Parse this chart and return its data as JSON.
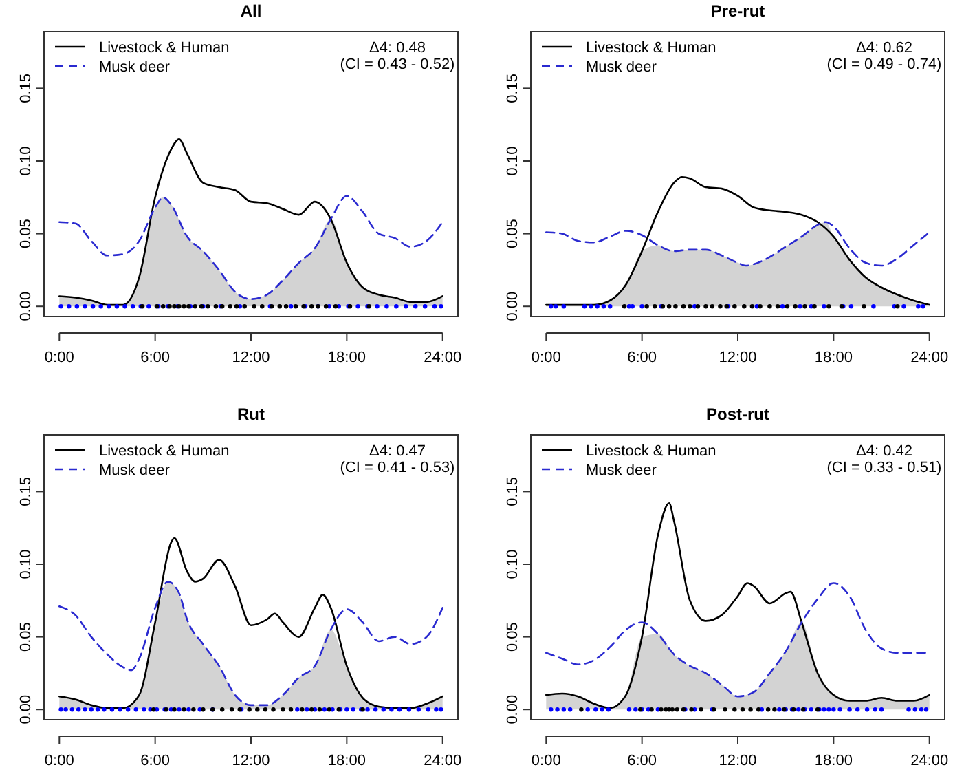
{
  "chart_data": [
    {
      "type": "line",
      "title": "All",
      "xlim": [
        -0.96,
        24.96
      ],
      "ylim": [
        -0.007,
        0.189
      ],
      "xticks": [
        {
          "value": 0,
          "label": "0:00"
        },
        {
          "value": 6,
          "label": "6:00"
        },
        {
          "value": 12,
          "label": "12:00"
        },
        {
          "value": 18,
          "label": "18:00"
        },
        {
          "value": 24,
          "label": "24:00"
        }
      ],
      "yticks": [
        {
          "value": 0,
          "label": "0.00"
        },
        {
          "value": 0.05,
          "label": "0.05"
        },
        {
          "value": 0.1,
          "label": "0.10"
        },
        {
          "value": 0.15,
          "label": "0.15"
        }
      ],
      "legend": "top left",
      "annotations": [
        "Δ4: 0.48",
        "(CI = 0.43 - 0.52)"
      ],
      "series": [
        {
          "type": "area",
          "color": "#d3d3d3",
          "x": [
            0,
            1,
            2,
            3,
            4,
            5,
            6,
            6.5,
            7,
            8,
            9,
            10,
            11,
            12,
            13,
            14,
            15,
            16,
            17,
            18,
            19,
            20,
            21,
            22,
            23,
            24
          ],
          "values": [
            0.007,
            0.006,
            0.004,
            0.001,
            0.001,
            0.02,
            0.068,
            0.075,
            0.07,
            0.048,
            0.038,
            0.025,
            0.01,
            0.005,
            0.008,
            0.018,
            0.03,
            0.04,
            0.06,
            0.03,
            0.013,
            0.008,
            0.006,
            0.003,
            0.003,
            0.007
          ]
        },
        {
          "type": "line",
          "name": "Livestock & Human",
          "color": "#000000",
          "line_style": "solid",
          "x": [
            0,
            1,
            2,
            3,
            4,
            5,
            6,
            7,
            7.5,
            8,
            9,
            10,
            11,
            12,
            13,
            14,
            15,
            16,
            17,
            18,
            19,
            20,
            21,
            22,
            23,
            24
          ],
          "values": [
            0.007,
            0.006,
            0.004,
            0.001,
            0.001,
            0.02,
            0.075,
            0.108,
            0.115,
            0.105,
            0.085,
            0.082,
            0.08,
            0.072,
            0.071,
            0.067,
            0.063,
            0.072,
            0.06,
            0.03,
            0.013,
            0.008,
            0.006,
            0.003,
            0.003,
            0.007
          ]
        },
        {
          "type": "line",
          "name": "Musk deer",
          "color": "#2a2ad0",
          "line_style": "dashed",
          "x": [
            0,
            1,
            2,
            3,
            4,
            5,
            6,
            6.5,
            7,
            8,
            9,
            10,
            11,
            12,
            13,
            14,
            15,
            16,
            17,
            18,
            19,
            20,
            21,
            22,
            23,
            24
          ],
          "values": [
            0.058,
            0.057,
            0.045,
            0.035,
            0.036,
            0.045,
            0.068,
            0.075,
            0.07,
            0.048,
            0.038,
            0.025,
            0.01,
            0.005,
            0.008,
            0.018,
            0.03,
            0.04,
            0.06,
            0.076,
            0.065,
            0.05,
            0.047,
            0.041,
            0.045,
            0.058
          ]
        },
        {
          "type": "scatter",
          "color": "#0000ff",
          "x": [
            0.1,
            0.6,
            1.1,
            1.6,
            2.1,
            2.6,
            3.1,
            3.6,
            4.1,
            4.6,
            5.1,
            5.6,
            6.2,
            6.8,
            7.4,
            8.2,
            9,
            10.1,
            11.3,
            13.2,
            14.5,
            15.4,
            16.2,
            16.9,
            17.5,
            18.1,
            18.7,
            19.3,
            19.9,
            20.5,
            21.1,
            21.7,
            22.3,
            22.9,
            23.5,
            23.9
          ],
          "values": [
            0,
            0,
            0,
            0,
            0,
            0,
            0,
            0,
            0,
            0,
            0,
            0,
            0,
            0,
            0,
            0,
            0,
            0,
            0,
            0,
            0,
            0,
            0,
            0,
            0,
            0,
            0,
            0,
            0,
            0,
            0,
            0,
            0,
            0,
            0,
            0
          ]
        },
        {
          "type": "scatter",
          "color": "#000000",
          "x": [
            5.2,
            6.1,
            6.5,
            6.9,
            7.2,
            7.5,
            7.8,
            8.1,
            8.5,
            8.9,
            9.3,
            9.8,
            10.2,
            10.7,
            11.1,
            11.6,
            12.2,
            12.7,
            13.3,
            13.8,
            14.2,
            14.8,
            15.3,
            15.8,
            16.2,
            16.7,
            17.3,
            18.2,
            19.4
          ],
          "values": [
            0,
            0,
            0,
            0,
            0,
            0,
            0,
            0,
            0,
            0,
            0,
            0,
            0,
            0,
            0,
            0,
            0,
            0,
            0,
            0,
            0,
            0,
            0,
            0,
            0,
            0,
            0,
            0,
            0
          ]
        }
      ]
    },
    {
      "type": "line",
      "title": "Pre-rut",
      "xlim": [
        -0.96,
        24.96
      ],
      "ylim": [
        -0.007,
        0.189
      ],
      "xticks": [
        {
          "value": 0,
          "label": "0:00"
        },
        {
          "value": 6,
          "label": "6:00"
        },
        {
          "value": 12,
          "label": "12:00"
        },
        {
          "value": 18,
          "label": "18:00"
        },
        {
          "value": 24,
          "label": "24:00"
        }
      ],
      "yticks": [
        {
          "value": 0,
          "label": "0.00"
        },
        {
          "value": 0.05,
          "label": "0.05"
        },
        {
          "value": 0.1,
          "label": "0.10"
        },
        {
          "value": 0.15,
          "label": "0.15"
        }
      ],
      "legend": "top left",
      "annotations": [
        "Δ4: 0.62",
        "(CI = 0.49 - 0.74)"
      ],
      "series": [
        {
          "type": "area",
          "color": "#d3d3d3",
          "x": [
            0,
            1,
            2,
            3,
            4,
            5,
            6,
            7,
            8,
            9,
            10,
            11,
            12,
            12.5,
            13,
            14,
            15,
            16,
            17,
            17.5,
            18,
            19,
            20,
            21,
            22,
            23,
            24
          ],
          "values": [
            0.001,
            0.001,
            0.001,
            0.001,
            0.004,
            0.015,
            0.038,
            0.042,
            0.038,
            0.039,
            0.039,
            0.035,
            0.03,
            0.028,
            0.029,
            0.034,
            0.041,
            0.048,
            0.056,
            0.058,
            0.048,
            0.032,
            0.02,
            0.013,
            0.008,
            0.004,
            0.001
          ]
        },
        {
          "type": "line",
          "name": "Livestock & Human",
          "color": "#000000",
          "line_style": "solid",
          "x": [
            0,
            1,
            2,
            3,
            4,
            5,
            6,
            7,
            8,
            8.5,
            9,
            10,
            11,
            12,
            13,
            14,
            15,
            16,
            17,
            18,
            19,
            20,
            21,
            22,
            23,
            24
          ],
          "values": [
            0.001,
            0.001,
            0.001,
            0.001,
            0.004,
            0.015,
            0.038,
            0.065,
            0.085,
            0.089,
            0.088,
            0.082,
            0.081,
            0.076,
            0.068,
            0.066,
            0.065,
            0.063,
            0.058,
            0.048,
            0.032,
            0.02,
            0.013,
            0.008,
            0.004,
            0.001
          ]
        },
        {
          "type": "line",
          "name": "Musk deer",
          "color": "#2a2ad0",
          "line_style": "dashed",
          "x": [
            0,
            1,
            2,
            3,
            4,
            5,
            6,
            7,
            8,
            9,
            10,
            11,
            12,
            12.5,
            13,
            14,
            15,
            16,
            17,
            17.5,
            18,
            19,
            20,
            21,
            22,
            23,
            24
          ],
          "values": [
            0.051,
            0.05,
            0.045,
            0.044,
            0.048,
            0.052,
            0.049,
            0.042,
            0.038,
            0.039,
            0.039,
            0.035,
            0.03,
            0.028,
            0.029,
            0.034,
            0.041,
            0.048,
            0.056,
            0.058,
            0.055,
            0.04,
            0.03,
            0.028,
            0.033,
            0.042,
            0.051
          ]
        },
        {
          "type": "scatter",
          "color": "#0000ff",
          "x": [
            0.3,
            0.6,
            1.1,
            2.4,
            2.8,
            3.2,
            3.6,
            4.0,
            5.2,
            5.4,
            6.0,
            7.2,
            9.3,
            11.4,
            13.2,
            14.8,
            15.9,
            16.6,
            17.4,
            18.6,
            19.1,
            20.5,
            21.8,
            22.4,
            23.3,
            23.6
          ],
          "values": [
            0,
            0,
            0,
            0,
            0,
            0,
            0,
            0,
            0,
            0,
            0,
            0,
            0,
            0,
            0,
            0,
            0,
            0,
            0,
            0,
            0,
            0,
            0,
            0,
            0,
            0
          ]
        },
        {
          "type": "scatter",
          "color": "#000000",
          "x": [
            4.9,
            6.3,
            6.8,
            7.3,
            7.7,
            8.1,
            8.6,
            9.0,
            9.5,
            10.0,
            10.4,
            10.9,
            11.3,
            11.8,
            12.4,
            12.9,
            13.4,
            14.0,
            14.5,
            15.1,
            15.6,
            16.2,
            16.8,
            17.7,
            18.5,
            19.9,
            22.0
          ],
          "values": [
            0,
            0,
            0,
            0,
            0,
            0,
            0,
            0,
            0,
            0,
            0,
            0,
            0,
            0,
            0,
            0,
            0,
            0,
            0,
            0,
            0,
            0,
            0,
            0,
            0,
            0,
            0
          ]
        }
      ]
    },
    {
      "type": "line",
      "title": "Rut",
      "xlim": [
        -0.96,
        24.96
      ],
      "ylim": [
        -0.007,
        0.189
      ],
      "xticks": [
        {
          "value": 0,
          "label": "0:00"
        },
        {
          "value": 6,
          "label": "6:00"
        },
        {
          "value": 12,
          "label": "12:00"
        },
        {
          "value": 18,
          "label": "18:00"
        },
        {
          "value": 24,
          "label": "24:00"
        }
      ],
      "yticks": [
        {
          "value": 0,
          "label": "0.00"
        },
        {
          "value": 0.05,
          "label": "0.05"
        },
        {
          "value": 0.1,
          "label": "0.10"
        },
        {
          "value": 0.15,
          "label": "0.15"
        }
      ],
      "legend": "top left",
      "annotations": [
        "Δ4: 0.47",
        "(CI = 0.41 - 0.53)"
      ],
      "series": [
        {
          "type": "area",
          "color": "#d3d3d3",
          "x": [
            0,
            1,
            2,
            3,
            4,
            4.5,
            5,
            6,
            6.8,
            7.5,
            8,
            9,
            10,
            11,
            12,
            13,
            14,
            15,
            16,
            17,
            18,
            19,
            20,
            21,
            22,
            23,
            24
          ],
          "values": [
            0.009,
            0.007,
            0.003,
            0.001,
            0.001,
            0.003,
            0.01,
            0.06,
            0.088,
            0.08,
            0.062,
            0.045,
            0.03,
            0.01,
            0.003,
            0.003,
            0.01,
            0.022,
            0.03,
            0.055,
            0.03,
            0.008,
            0.002,
            0.001,
            0.001,
            0.004,
            0.009
          ]
        },
        {
          "type": "line",
          "name": "Livestock & Human",
          "color": "#000000",
          "line_style": "solid",
          "x": [
            0,
            1,
            2,
            3,
            4,
            5,
            6,
            7,
            7.2,
            8,
            8.5,
            9,
            10,
            11,
            12,
            13,
            13.5,
            14,
            15,
            16,
            16.5,
            17,
            18,
            19,
            20,
            21,
            22,
            23,
            24
          ],
          "values": [
            0.009,
            0.007,
            0.003,
            0.001,
            0.001,
            0.01,
            0.06,
            0.115,
            0.118,
            0.095,
            0.088,
            0.09,
            0.103,
            0.085,
            0.058,
            0.062,
            0.066,
            0.06,
            0.05,
            0.07,
            0.079,
            0.07,
            0.03,
            0.008,
            0.002,
            0.001,
            0.001,
            0.004,
            0.009
          ]
        },
        {
          "type": "line",
          "name": "Musk deer",
          "color": "#2a2ad0",
          "line_style": "dashed",
          "x": [
            0,
            1,
            2,
            3,
            4,
            4.5,
            5,
            6,
            6.8,
            7.5,
            8,
            9,
            10,
            11,
            12,
            13,
            14,
            15,
            16,
            17,
            18,
            19,
            20,
            21,
            22,
            23,
            24
          ],
          "values": [
            0.071,
            0.065,
            0.05,
            0.038,
            0.029,
            0.027,
            0.035,
            0.07,
            0.088,
            0.08,
            0.062,
            0.045,
            0.03,
            0.01,
            0.003,
            0.003,
            0.01,
            0.022,
            0.03,
            0.055,
            0.069,
            0.06,
            0.047,
            0.05,
            0.045,
            0.05,
            0.07
          ]
        },
        {
          "type": "scatter",
          "color": "#0000ff",
          "x": [
            0.1,
            0.4,
            0.8,
            1.2,
            1.6,
            2.0,
            2.4,
            2.8,
            3.3,
            3.8,
            4.3,
            4.8,
            5.3,
            5.7,
            6.1,
            6.6,
            7.0,
            7.5,
            8.1,
            8.8,
            9.6,
            11.4,
            14.9,
            15.5,
            16.0,
            16.6,
            17.1,
            17.6,
            18.0,
            18.4,
            18.9,
            19.3,
            19.8,
            20.3,
            20.8,
            21.3,
            21.9,
            22.5,
            23.1,
            23.6,
            23.9
          ],
          "values": [
            0,
            0,
            0,
            0,
            0,
            0,
            0,
            0,
            0,
            0,
            0,
            0,
            0,
            0,
            0,
            0,
            0,
            0,
            0,
            0,
            0,
            0,
            0,
            0,
            0,
            0,
            0,
            0,
            0,
            0,
            0,
            0,
            0,
            0,
            0,
            0,
            0,
            0,
            0,
            0,
            0
          ]
        },
        {
          "type": "scatter",
          "color": "#000000",
          "x": [
            5.9,
            6.7,
            7.2,
            7.8,
            8.4,
            9.0,
            9.6,
            10.2,
            10.8,
            11.3,
            11.9,
            12.4,
            12.9,
            13.4,
            14.0,
            14.5,
            15.2,
            15.8,
            16.3,
            16.9,
            17.5,
            19.0
          ],
          "values": [
            0,
            0,
            0,
            0,
            0,
            0,
            0,
            0,
            0,
            0,
            0,
            0,
            0,
            0,
            0,
            0,
            0,
            0,
            0,
            0,
            0,
            0
          ]
        }
      ]
    },
    {
      "type": "line",
      "title": "Post-rut",
      "xlim": [
        -0.96,
        24.96
      ],
      "ylim": [
        -0.007,
        0.189
      ],
      "xticks": [
        {
          "value": 0,
          "label": "0:00"
        },
        {
          "value": 6,
          "label": "6:00"
        },
        {
          "value": 12,
          "label": "12:00"
        },
        {
          "value": 18,
          "label": "18:00"
        },
        {
          "value": 24,
          "label": "24:00"
        }
      ],
      "yticks": [
        {
          "value": 0,
          "label": "0.00"
        },
        {
          "value": 0.05,
          "label": "0.05"
        },
        {
          "value": 0.1,
          "label": "0.10"
        },
        {
          "value": 0.15,
          "label": "0.15"
        }
      ],
      "legend": "top left",
      "annotations": [
        "Δ4: 0.42",
        "(CI = 0.33 - 0.51)"
      ],
      "series": [
        {
          "type": "area",
          "color": "#d3d3d3",
          "x": [
            0,
            1,
            2,
            3,
            4,
            5,
            6,
            7,
            8,
            9,
            10,
            11,
            12,
            13,
            14,
            15,
            16,
            17,
            18,
            19,
            20,
            21,
            22,
            23,
            24
          ],
          "values": [
            0.01,
            0.011,
            0.009,
            0.004,
            0.001,
            0.01,
            0.05,
            0.052,
            0.038,
            0.03,
            0.025,
            0.017,
            0.009,
            0.012,
            0.025,
            0.04,
            0.06,
            0.025,
            0.01,
            0.006,
            0.006,
            0.008,
            0.006,
            0.006,
            0.01
          ]
        },
        {
          "type": "line",
          "name": "Livestock & Human",
          "color": "#000000",
          "line_style": "solid",
          "x": [
            0,
            1,
            2,
            3,
            4,
            5,
            6,
            7,
            7.7,
            8,
            9,
            10,
            11,
            12,
            12.6,
            13,
            14,
            15,
            15.3,
            16,
            17,
            18,
            19,
            20,
            21,
            22,
            23,
            24
          ],
          "values": [
            0.01,
            0.011,
            0.009,
            0.004,
            0.001,
            0.01,
            0.05,
            0.12,
            0.142,
            0.13,
            0.075,
            0.061,
            0.065,
            0.078,
            0.087,
            0.085,
            0.073,
            0.08,
            0.081,
            0.06,
            0.025,
            0.01,
            0.006,
            0.006,
            0.008,
            0.006,
            0.006,
            0.01
          ]
        },
        {
          "type": "line",
          "name": "Musk deer",
          "color": "#2a2ad0",
          "line_style": "dashed",
          "x": [
            0,
            1,
            2,
            3,
            4,
            5,
            6,
            7,
            8,
            9,
            10,
            11,
            12,
            13,
            14,
            15,
            16,
            17,
            18,
            19,
            20,
            21,
            22,
            23,
            24
          ],
          "values": [
            0.039,
            0.035,
            0.031,
            0.034,
            0.043,
            0.055,
            0.06,
            0.052,
            0.038,
            0.03,
            0.025,
            0.017,
            0.009,
            0.012,
            0.025,
            0.04,
            0.06,
            0.076,
            0.087,
            0.078,
            0.055,
            0.042,
            0.039,
            0.039,
            0.039
          ]
        },
        {
          "type": "scatter",
          "color": "#0000ff",
          "x": [
            0.3,
            0.7,
            1.1,
            1.5,
            2.6,
            3.1,
            3.5,
            3.9,
            5.2,
            5.6,
            6.0,
            6.4,
            7.0,
            8.7,
            9.3,
            10.4,
            13.5,
            14.6,
            15.0,
            15.4,
            15.8,
            16.2,
            16.6,
            17.1,
            17.4,
            17.7,
            18.0,
            18.4,
            19.0,
            19.5,
            20.1,
            20.6,
            21.0,
            22.7,
            23.1,
            23.5,
            23.8
          ],
          "values": [
            0,
            0,
            0,
            0,
            0,
            0,
            0,
            0,
            0,
            0,
            0,
            0,
            0,
            0,
            0,
            0,
            0,
            0,
            0,
            0,
            0,
            0,
            0,
            0,
            0,
            0,
            0,
            0,
            0,
            0,
            0,
            0,
            0,
            0,
            0,
            0,
            0
          ]
        },
        {
          "type": "scatter",
          "color": "#000000",
          "x": [
            2.2,
            5.9,
            6.6,
            7.2,
            7.5,
            7.7,
            7.9,
            8.2,
            8.6,
            9.1,
            9.7,
            10.5,
            11.2,
            11.8,
            12.3,
            12.8,
            13.3,
            13.9,
            14.3,
            14.9,
            15.5,
            16.1,
            17.0
          ],
          "values": [
            0,
            0,
            0,
            0,
            0,
            0,
            0,
            0,
            0,
            0,
            0,
            0,
            0,
            0,
            0,
            0,
            0,
            0,
            0,
            0,
            0,
            0,
            0
          ]
        }
      ]
    }
  ]
}
